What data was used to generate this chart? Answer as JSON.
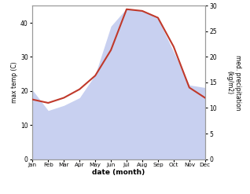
{
  "months": [
    "Jan",
    "Feb",
    "Mar",
    "Apr",
    "May",
    "Jun",
    "Jul",
    "Aug",
    "Sep",
    "Oct",
    "Nov",
    "Dec"
  ],
  "temp": [
    17.5,
    16.5,
    18.0,
    20.5,
    24.5,
    32.0,
    44.0,
    43.5,
    41.5,
    33.0,
    21.0,
    18.0
  ],
  "precip": [
    13.5,
    9.5,
    10.5,
    12.0,
    16.5,
    26.0,
    29.5,
    29.0,
    27.5,
    21.0,
    14.5,
    14.0
  ],
  "temp_color": "#c0392b",
  "precip_fill_color": "#c8d0f0",
  "temp_ylim": [
    0,
    45
  ],
  "precip_ylim": [
    0,
    30
  ],
  "temp_yticks": [
    0,
    10,
    20,
    30,
    40
  ],
  "precip_yticks": [
    0,
    5,
    10,
    15,
    20,
    25,
    30
  ],
  "xlabel": "date (month)",
  "ylabel_left": "max temp (C)",
  "ylabel_right": "med. precipitation\n(kg/m2)",
  "spine_color": "#999999"
}
